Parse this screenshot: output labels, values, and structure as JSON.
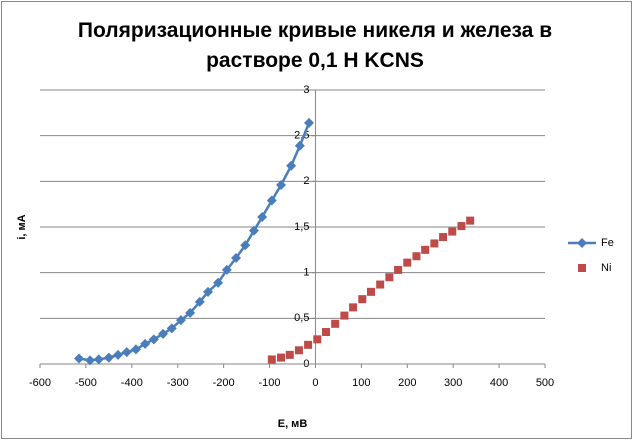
{
  "chart_data": {
    "type": "scatter",
    "title": "Поляризационные кривые никеля и железа в растворе 0,1 Н KCNS",
    "xlabel": "E, мВ",
    "ylabel": "i, мА",
    "xlim": [
      -600,
      500
    ],
    "xticks": [
      -600,
      -500,
      -400,
      -300,
      -200,
      -100,
      0,
      100,
      200,
      300,
      400,
      500
    ],
    "ylim": [
      0,
      3
    ],
    "yticks": [
      0,
      {
        "value": 0.5,
        "label": "0,5"
      },
      1,
      {
        "value": 1.5,
        "label": "1,5"
      },
      2,
      {
        "value": 2.5,
        "label": "2,5"
      },
      3
    ],
    "grid": true,
    "legend": "right",
    "series": [
      {
        "name": "Fe",
        "color": "#4a7ebb",
        "marker": "diamond",
        "line": true,
        "x": [
          -515,
          -491,
          -472,
          -450,
          -430,
          -411,
          -391,
          -371,
          -352,
          -332,
          -313,
          -293,
          -273,
          -252,
          -234,
          -212,
          -193,
          -173,
          -153,
          -134,
          -116,
          -95,
          -75,
          -53,
          -34,
          -14
        ],
        "values": [
          0.06,
          0.04,
          0.05,
          0.07,
          0.1,
          0.13,
          0.16,
          0.22,
          0.27,
          0.33,
          0.39,
          0.48,
          0.56,
          0.68,
          0.79,
          0.89,
          1.03,
          1.16,
          1.3,
          1.46,
          1.61,
          1.79,
          1.96,
          2.17,
          2.39,
          2.64
        ]
      },
      {
        "name": "Ni",
        "color": "#be4b48",
        "marker": "square",
        "line": false,
        "x": [
          -95,
          -75,
          -56,
          -36,
          -16,
          4,
          23,
          43,
          63,
          82,
          102,
          121,
          141,
          161,
          180,
          200,
          220,
          239,
          259,
          278,
          298,
          318,
          337
        ],
        "values": [
          0.05,
          0.07,
          0.1,
          0.15,
          0.21,
          0.27,
          0.35,
          0.44,
          0.53,
          0.62,
          0.71,
          0.79,
          0.87,
          0.95,
          1.03,
          1.11,
          1.18,
          1.25,
          1.32,
          1.39,
          1.45,
          1.51,
          1.57
        ]
      }
    ]
  }
}
